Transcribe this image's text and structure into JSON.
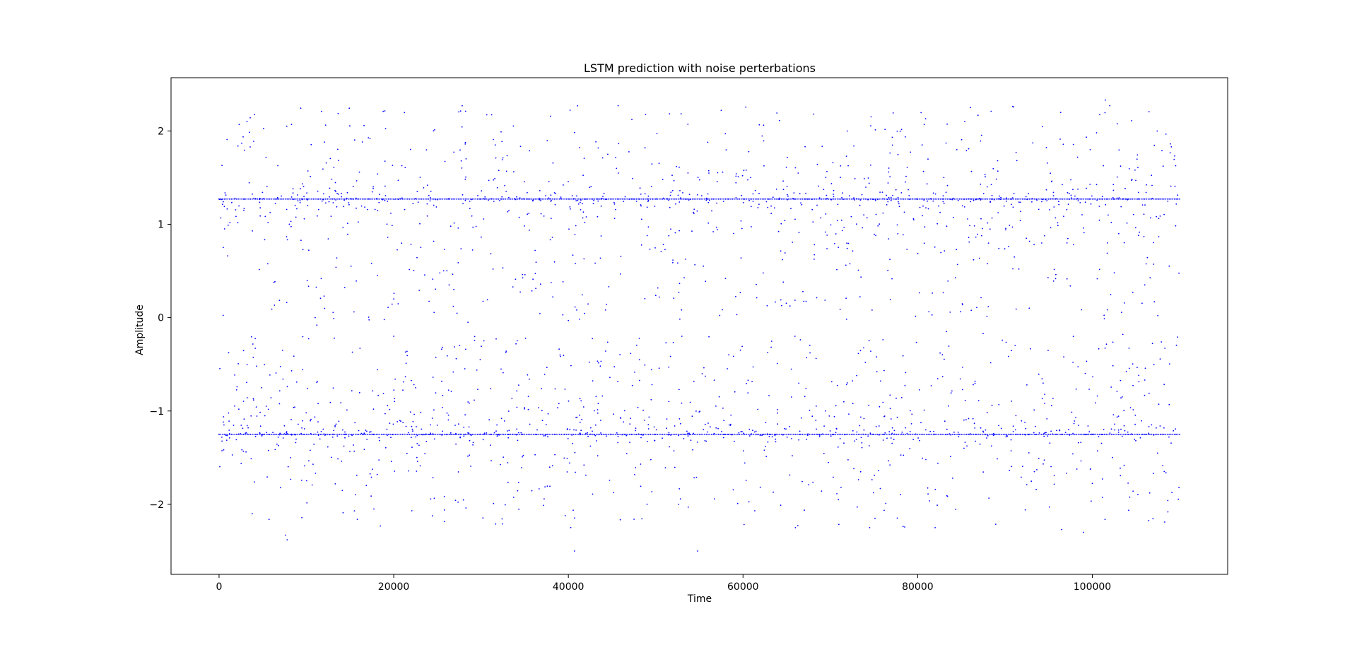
{
  "chart_data": {
    "type": "scatter",
    "title": "LSTM prediction with noise perterbations",
    "xlabel": "Time",
    "ylabel": "Amplitude",
    "xlim": [
      -5500,
      115500
    ],
    "ylim": [
      -2.75,
      2.57
    ],
    "x_ticks": [
      0,
      20000,
      40000,
      60000,
      80000,
      100000
    ],
    "x_tick_labels": [
      "0",
      "20000",
      "40000",
      "60000",
      "80000",
      "100000"
    ],
    "y_ticks": [
      -2,
      -1,
      0,
      1,
      2
    ],
    "y_tick_labels": [
      "−2",
      "−1",
      "0",
      "1",
      "2"
    ],
    "grid": false,
    "legend": "none",
    "marker_color": "#0000ff",
    "series": [
      {
        "levels": [
          1.27,
          -1.25
        ],
        "x_range": [
          0,
          110000
        ],
        "points_per_level": 550,
        "sample_points": [
          [
            0,
            1.27
          ],
          [
            11000,
            0.0
          ],
          [
            11200,
            -0.08
          ],
          [
            20000,
            0.2
          ],
          [
            28500,
            -0.05
          ],
          [
            40000,
            -0.03
          ],
          [
            45700,
            2.27
          ],
          [
            57500,
            2.22
          ],
          [
            101500,
            2.33
          ],
          [
            102000,
            2.27
          ],
          [
            8300,
            2.07
          ],
          [
            18800,
            2.21
          ],
          [
            53000,
            -0.2
          ],
          [
            83300,
            -0.15
          ],
          [
            87500,
            -0.17
          ],
          [
            103500,
            -0.18
          ],
          [
            20000,
            -0.2
          ],
          [
            13200,
            -0.22
          ],
          [
            7800,
            -2.38
          ],
          [
            7600,
            -2.33
          ],
          [
            40700,
            -2.5
          ],
          [
            54800,
            -2.5
          ],
          [
            3800,
            -2.1
          ],
          [
            15500,
            -2.07
          ],
          [
            66000,
            -2.25
          ],
          [
            74500,
            -2.25
          ],
          [
            82000,
            -2.25
          ],
          [
            96500,
            -2.27
          ],
          [
            99000,
            -2.3
          ],
          [
            0,
            -1.25
          ]
        ]
      }
    ]
  }
}
